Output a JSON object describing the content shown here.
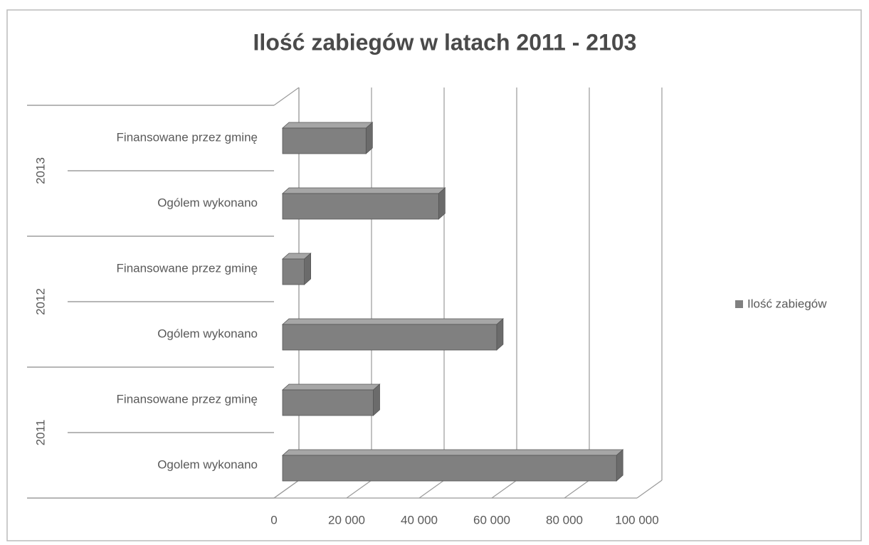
{
  "chart_data": {
    "type": "bar3d_horizontal",
    "title": "Ilość zabiegów w latach 2011 - 2103",
    "groups": [
      {
        "name": "2011",
        "categories": [
          "Ogolem wykonano",
          "Finansowane przez gminę"
        ]
      },
      {
        "name": "2012",
        "categories": [
          "Ogólem wykonano",
          "Finansowane przez gminę"
        ]
      },
      {
        "name": "2013",
        "categories": [
          "Ogólem wykonano",
          "Finansowane przez gminę"
        ]
      }
    ],
    "series": [
      {
        "name": "Ilość zabiegów",
        "color": "#808080",
        "values": [
          92000,
          25000,
          59000,
          6000,
          43000,
          23000
        ]
      }
    ],
    "xlim": [
      0,
      100000
    ],
    "xticks": [
      0,
      {
        "value": 20000,
        "label": "20 000"
      },
      {
        "value": 40000,
        "label": "40 000"
      },
      {
        "value": 60000,
        "label": "60 000"
      },
      {
        "value": 80000,
        "label": "80 000"
      },
      {
        "value": 100000,
        "label": "100 000"
      }
    ],
    "grid": true,
    "legend": "right"
  }
}
